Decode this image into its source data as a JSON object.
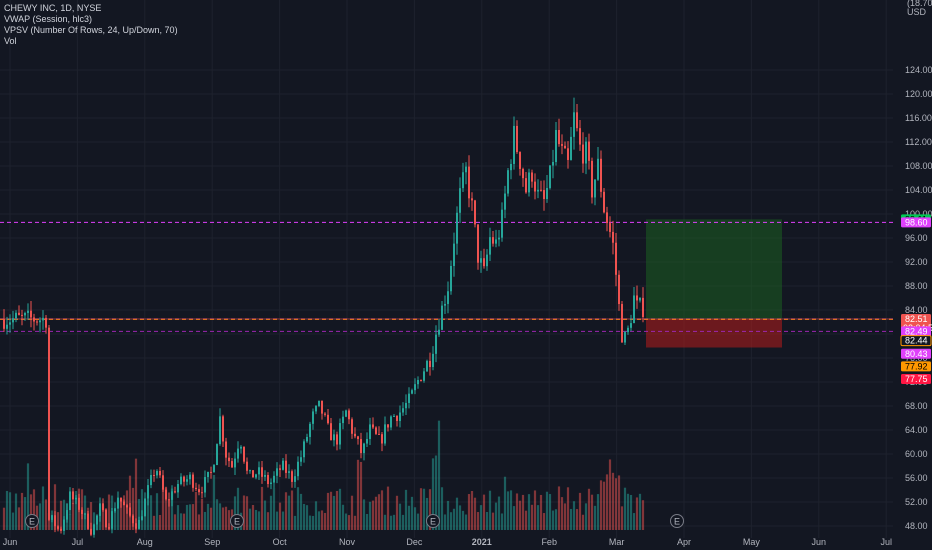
{
  "legend": {
    "symbol": "CHEWY INC, 1D, NYSE",
    "vwap": "VWAP (Session, hlc3)",
    "vpsv": "VPSV (Number Of Rows, 24, Up/Down, 70)",
    "vol": "Vol"
  },
  "colors": {
    "background": "#131722",
    "up": "#26a69a",
    "down": "#ef5350",
    "axis_text": "#b2b5be",
    "grid": "#1e222d"
  },
  "chart_data": {
    "type": "candlestick",
    "title": "CHEWY INC, 1D, NYSE",
    "currency": "USD",
    "y_axis": {
      "ticks": [
        124.0,
        120.0,
        116.0,
        112.0,
        108.0,
        104.0,
        100.0,
        96.0,
        92.0,
        88.0,
        84.0,
        80.0,
        76.0,
        72.0,
        68.0,
        64.0,
        60.0,
        56.0,
        52.0,
        48.0
      ],
      "range": [
        46,
        128
      ]
    },
    "x_axis": {
      "labels": [
        "Jun",
        "Jul",
        "Aug",
        "Sep",
        "Oct",
        "Nov",
        "Dec",
        "2021",
        "Feb",
        "Mar",
        "Apr",
        "May",
        "Jun",
        "Jul"
      ],
      "bold_label": "2021"
    },
    "price_path": [
      [
        48,
        49
      ],
      [
        52,
        49
      ],
      [
        60,
        47
      ],
      [
        70,
        53
      ],
      [
        80,
        51
      ],
      [
        92,
        47
      ],
      [
        100,
        51
      ],
      [
        108,
        48
      ],
      [
        118,
        53
      ],
      [
        128,
        50
      ],
      [
        138,
        48
      ],
      [
        148,
        54
      ],
      [
        156,
        58
      ],
      [
        166,
        52
      ],
      [
        178,
        55
      ],
      [
        190,
        56
      ],
      [
        200,
        54
      ],
      [
        212,
        57
      ],
      [
        220,
        66
      ],
      [
        226,
        60
      ],
      [
        232,
        58
      ],
      [
        240,
        63
      ],
      [
        248,
        56
      ],
      [
        258,
        57
      ],
      [
        270,
        55
      ],
      [
        282,
        58
      ],
      [
        292,
        56
      ],
      [
        302,
        60
      ],
      [
        312,
        66
      ],
      [
        320,
        68
      ],
      [
        328,
        64
      ],
      [
        336,
        62
      ],
      [
        346,
        67
      ],
      [
        354,
        63
      ],
      [
        362,
        60
      ],
      [
        370,
        64
      ],
      [
        380,
        62
      ],
      [
        390,
        66
      ],
      [
        400,
        67
      ],
      [
        410,
        69
      ],
      [
        420,
        73
      ],
      [
        430,
        76
      ],
      [
        440,
        83
      ],
      [
        448,
        88
      ],
      [
        454,
        96
      ],
      [
        460,
        103
      ],
      [
        466,
        107
      ],
      [
        472,
        101
      ],
      [
        478,
        93
      ],
      [
        484,
        90
      ],
      [
        490,
        96
      ],
      [
        496,
        95
      ],
      [
        502,
        99
      ],
      [
        508,
        107
      ],
      [
        514,
        113
      ],
      [
        520,
        109
      ],
      [
        526,
        104
      ],
      [
        532,
        107
      ],
      [
        538,
        103
      ],
      [
        544,
        102
      ],
      [
        550,
        106
      ],
      [
        556,
        113
      ],
      [
        562,
        110
      ],
      [
        568,
        108
      ],
      [
        574,
        116
      ],
      [
        580,
        111
      ],
      [
        586,
        110
      ],
      [
        592,
        104
      ],
      [
        598,
        108
      ],
      [
        604,
        101
      ],
      [
        610,
        97
      ],
      [
        614,
        94
      ],
      [
        618,
        86
      ],
      [
        622,
        80
      ],
      [
        626,
        79
      ],
      [
        630,
        82
      ],
      [
        634,
        86
      ],
      [
        638,
        84
      ],
      [
        642,
        85
      ],
      [
        646,
        82.5
      ]
    ],
    "volume": {
      "baseline_y": 530,
      "max_height": 116
    },
    "earnings_markers": {
      "label": "E",
      "x_positions": [
        32,
        237,
        433,
        677
      ]
    },
    "horizontal_lines": [
      {
        "price": 98.6,
        "color": "#e040fb",
        "style": "dashed"
      },
      {
        "price": 82.49,
        "color": "#e040fb",
        "style": "dashed"
      },
      {
        "price": 80.43,
        "color": "#9c27b0",
        "style": "dashed"
      },
      {
        "price": 82.44,
        "color": "#ff9800",
        "style": "dashed"
      },
      {
        "price": 82.51,
        "color": "#ef5350",
        "style": "solid"
      }
    ],
    "position_tool": {
      "entry": 82.51,
      "target": 99.11,
      "stop": 77.75
    },
    "price_tags": [
      {
        "price": 99.11,
        "label": "99.11",
        "bg": "#00c853",
        "fg": "#000000"
      },
      {
        "price": 98.6,
        "label": "98.60",
        "bg": "#e040fb",
        "fg": "#ffffff"
      },
      {
        "price": 82.51,
        "label": "82.51",
        "bg": "#ef5350",
        "fg": "#ffffff",
        "sub": "02:04:52"
      },
      {
        "price": 80.43,
        "label": "82.49",
        "bg": "#e040fb",
        "fg": "#ffffff"
      },
      {
        "price": 78.9,
        "label": "82.44",
        "bg": "#131722",
        "fg": "#ffffff",
        "border": "#ff9800"
      },
      {
        "price": 76.7,
        "label": "80.43",
        "bg": "#e040fb",
        "fg": "#ffffff"
      },
      {
        "price": 74.6,
        "label": "77.92",
        "bg": "#ff9800",
        "fg": "#000000"
      },
      {
        "price": 72.5,
        "label": "77.75",
        "bg": "#ff1744",
        "fg": "#ffffff"
      }
    ],
    "top_right_labels": [
      "(18.70)",
      "USD"
    ]
  }
}
